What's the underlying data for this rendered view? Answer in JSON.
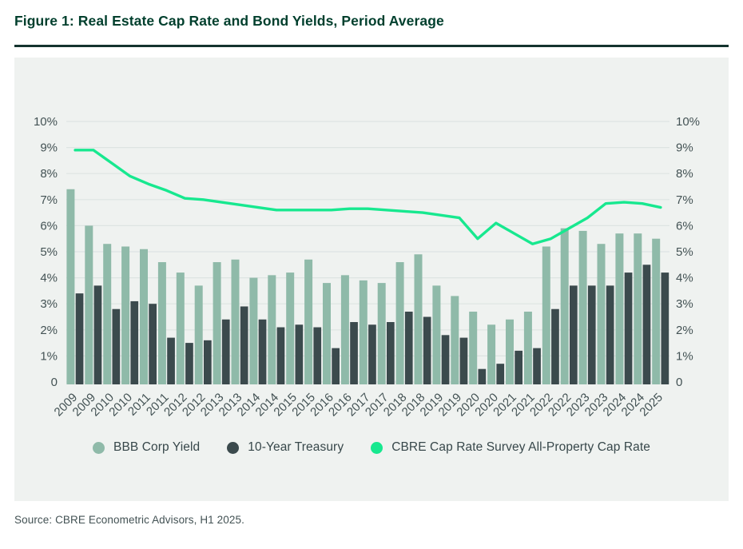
{
  "figure": {
    "title": "Figure 1: Real Estate Cap Rate and Bond Yields, Period Average",
    "source": "Source: CBRE Econometric Advisors, H1 2025."
  },
  "colors": {
    "title_text": "#003F2D",
    "divider": "#14332E",
    "panel_background": "#EFF2F0",
    "gridline": "#DDE4E2",
    "axis_text": "#435254",
    "legend_text": "#37474A",
    "bbb_bar": "#8FBAA9",
    "treasury_bar": "#3B4A4D",
    "cap_rate_line": "#17E88F"
  },
  "chart_data": {
    "type": "bar",
    "title": "Figure 1: Real Estate Cap Rate and Bond Yields, Period Average",
    "unit": "%",
    "categories": [
      "2009",
      "2009",
      "2010",
      "2010",
      "2011",
      "2011",
      "2012",
      "2012",
      "2013",
      "2013",
      "2014",
      "2014",
      "2015",
      "2015",
      "2016",
      "2016",
      "2017",
      "2017",
      "2018",
      "2018",
      "2019",
      "2019",
      "2020",
      "2020",
      "2021",
      "2021",
      "2022",
      "2022",
      "2023",
      "2023",
      "2024",
      "2024",
      "2025"
    ],
    "series": [
      {
        "name": "BBB Corp Yield",
        "type": "bar",
        "color": "#8FBAA9",
        "values": [
          7.4,
          6.0,
          5.3,
          5.2,
          5.1,
          4.6,
          4.2,
          3.7,
          4.6,
          4.7,
          4.0,
          4.1,
          4.2,
          4.7,
          3.8,
          4.1,
          3.9,
          3.8,
          4.6,
          4.9,
          3.7,
          3.3,
          2.7,
          2.2,
          2.4,
          2.7,
          5.2,
          5.9,
          5.8,
          5.3,
          5.7,
          5.7,
          5.5
        ]
      },
      {
        "name": "10-Year Treasury",
        "type": "bar",
        "color": "#3B4A4D",
        "values": [
          3.4,
          3.7,
          2.8,
          3.1,
          3.0,
          1.7,
          1.5,
          1.6,
          2.4,
          2.9,
          2.4,
          2.1,
          2.2,
          2.1,
          1.3,
          2.3,
          2.2,
          2.3,
          2.7,
          2.5,
          1.8,
          1.7,
          0.5,
          0.7,
          1.2,
          1.3,
          2.8,
          3.7,
          3.7,
          3.7,
          4.2,
          4.5,
          4.2
        ]
      },
      {
        "name": "CBRE Cap Rate Survey All-Property Cap Rate",
        "type": "line",
        "color": "#17E88F",
        "values": [
          8.9,
          8.9,
          8.4,
          7.9,
          7.6,
          7.35,
          7.05,
          7.0,
          6.9,
          6.8,
          6.7,
          6.6,
          6.6,
          6.6,
          6.6,
          6.65,
          6.65,
          6.6,
          6.55,
          6.5,
          6.4,
          6.3,
          5.5,
          6.1,
          5.7,
          5.3,
          5.5,
          5.9,
          6.3,
          6.85,
          6.9,
          6.85,
          6.7
        ]
      }
    ],
    "y_ticks": [
      "10%",
      "9%",
      "8%",
      "7%",
      "6%",
      "5%",
      "4%",
      "3%",
      "2%",
      "1%",
      "0"
    ],
    "ylim": [
      0,
      10
    ],
    "grid": true,
    "legend_position": "bottom",
    "dual_y_axis": true
  },
  "legend": {
    "items": [
      {
        "label": "BBB Corp Yield",
        "color": "#8FBAA9"
      },
      {
        "label": "10-Year Treasury",
        "color": "#3B4A4D"
      },
      {
        "label": "CBRE Cap Rate Survey All-Property Cap Rate",
        "color": "#17E88F"
      }
    ]
  }
}
